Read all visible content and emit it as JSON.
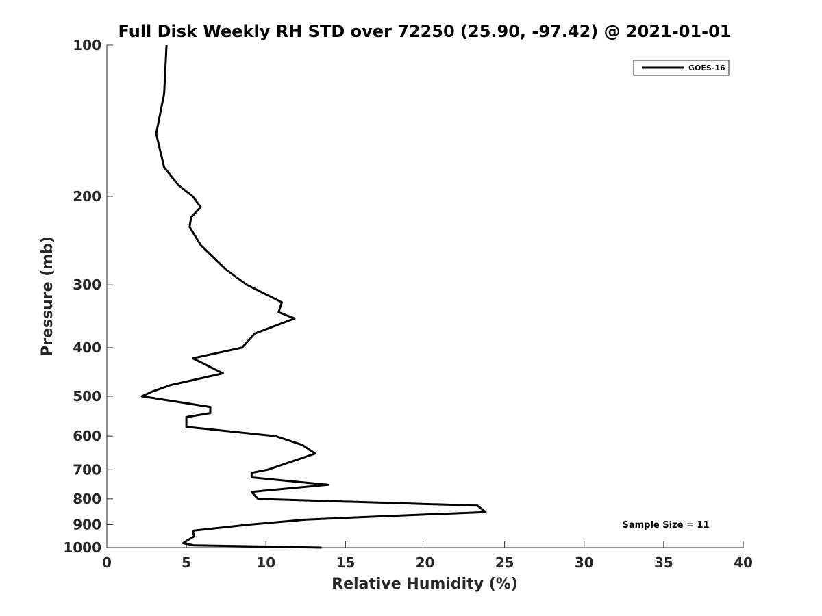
{
  "chart_data": {
    "type": "line",
    "title": "Full Disk Weekly RH STD over 72250 (25.90, -97.42) @ 2021-01-01",
    "xlabel": "Relative Humidity (%)",
    "ylabel": "Pressure (mb)",
    "xlim": [
      0,
      40
    ],
    "ylim": [
      1000,
      100
    ],
    "yscale": "log",
    "x_ticks": [
      "0",
      "5",
      "10",
      "15",
      "20",
      "25",
      "30",
      "35",
      "40"
    ],
    "y_ticks": [
      "100",
      "200",
      "300",
      "400",
      "500",
      "600",
      "700",
      "800",
      "900",
      "1000"
    ],
    "legend": {
      "position": "top-right",
      "entries": [
        "GOES-16"
      ]
    },
    "annotation": "Sample Size = 11",
    "line_color": "#000000",
    "series": [
      {
        "name": "GOES-16",
        "points": [
          [
            3.75,
            100
          ],
          [
            3.6,
            125
          ],
          [
            3.1,
            150
          ],
          [
            3.6,
            175
          ],
          [
            4.5,
            190
          ],
          [
            5.4,
            200
          ],
          [
            5.9,
            210
          ],
          [
            5.3,
            220
          ],
          [
            5.2,
            230
          ],
          [
            5.9,
            250
          ],
          [
            7.5,
            280
          ],
          [
            8.8,
            300
          ],
          [
            11.0,
            325
          ],
          [
            10.8,
            340
          ],
          [
            11.8,
            350
          ],
          [
            9.3,
            375
          ],
          [
            8.5,
            400
          ],
          [
            5.4,
            420
          ],
          [
            7.3,
            450
          ],
          [
            4.0,
            475
          ],
          [
            2.8,
            490
          ],
          [
            2.2,
            500
          ],
          [
            6.5,
            525
          ],
          [
            6.5,
            540
          ],
          [
            5.0,
            550
          ],
          [
            5.0,
            575
          ],
          [
            10.6,
            600
          ],
          [
            12.3,
            625
          ],
          [
            13.1,
            650
          ],
          [
            10.1,
            700
          ],
          [
            9.1,
            710
          ],
          [
            9.1,
            725
          ],
          [
            13.9,
            750
          ],
          [
            9.1,
            775
          ],
          [
            9.5,
            800
          ],
          [
            23.3,
            825
          ],
          [
            23.8,
            850
          ],
          [
            16.0,
            870
          ],
          [
            12.5,
            880
          ],
          [
            9.0,
            900
          ],
          [
            5.5,
            925
          ],
          [
            5.4,
            930
          ],
          [
            5.5,
            950
          ],
          [
            5.0,
            970
          ],
          [
            4.8,
            980
          ],
          [
            5.5,
            990
          ],
          [
            9.8,
            995
          ],
          [
            13.5,
            1000
          ]
        ]
      }
    ]
  }
}
